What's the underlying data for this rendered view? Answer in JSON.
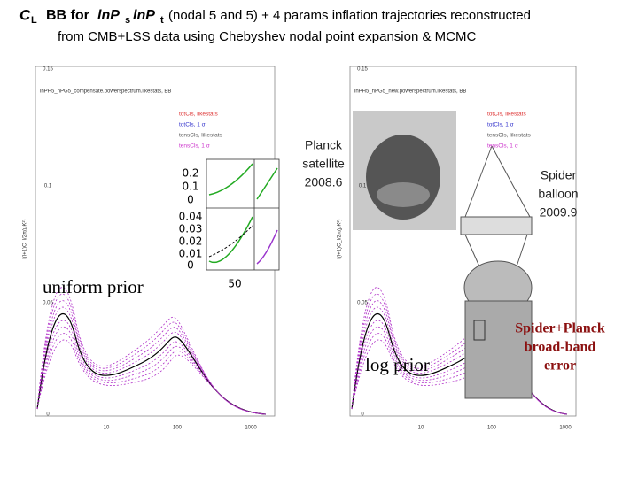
{
  "title": {
    "symbol": "C",
    "symbol_sub": "L",
    "text1": "BB for",
    "lnps": "lnP",
    "lnps_sub": "s",
    "lnpt": "lnP",
    "lnpt_sub": "t",
    "text2": "(nodal 5 and 5) + 4 params inflation trajectories reconstructed",
    "line2": "from CMB+LSS data using Chebyshev nodal point expansion & MCMC"
  },
  "left_panel": {
    "header": "lnPH5_nPG5_compensate.powerspectrum.likestats, BB",
    "legend": [
      "totCls, likestats",
      "totCls, 1 σ",
      "tensCls, likestats",
      "tensCls, 1 σ"
    ],
    "yticks": [
      "0.15",
      "0.1",
      "0.05",
      "0"
    ],
    "xticks": [
      "10",
      "100",
      "1000"
    ],
    "ylabel": "l(l+1)C_l/2π(μK²)",
    "annotation": "uniform prior"
  },
  "right_panel": {
    "header": "lnPH5_nPG5_new.powerspectrum.likestats, BB",
    "legend": [
      "totCls, likestats",
      "totCls, 1 σ",
      "tensCls, likestats",
      "tensCls, 1 σ"
    ],
    "yticks": [
      "0.15",
      "0.1",
      "0.05",
      "0"
    ],
    "xticks": [
      "10",
      "100",
      "1000"
    ],
    "ylabel": "l(l+1)C_l/2π(μK²)",
    "annotation": "log prior"
  },
  "inset": {
    "yticks_top": [
      "0.2",
      "0.1",
      "0"
    ],
    "yticks_bottom": [
      "0.04",
      "0.03",
      "0.02",
      "0.01",
      "0"
    ],
    "xtick": "50"
  },
  "planck": [
    "Planck",
    "satellite",
    "2008.6"
  ],
  "spider": [
    "Spider",
    "balloon",
    "2009.9"
  ],
  "spider_planck": [
    "Spider+Planck",
    "broad-band",
    "error"
  ]
}
